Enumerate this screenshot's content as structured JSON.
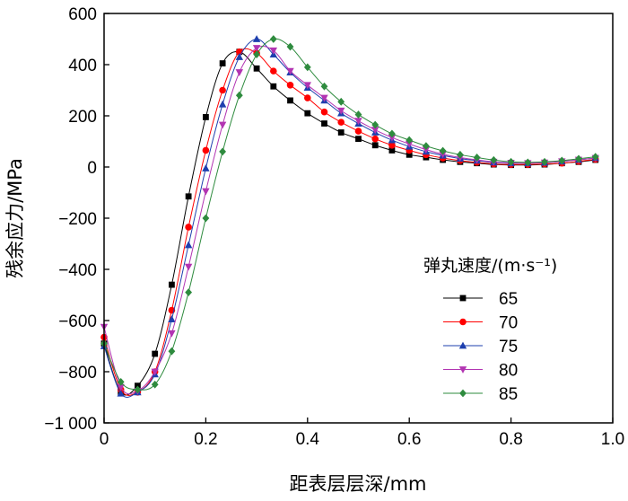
{
  "chart_data": {
    "type": "line",
    "title": "",
    "xlabel": "距表层层深/mm",
    "ylabel": "残余应力/MPa",
    "xlim": [
      0,
      1.0
    ],
    "ylim": [
      -1000,
      600
    ],
    "xticks": [
      "0",
      "0.2",
      "0.4",
      "0.6",
      "0.8",
      "1.0"
    ],
    "yticks": [
      "600",
      "400",
      "200",
      "0",
      "−200",
      "−400",
      "−600",
      "−800",
      "−1 000"
    ],
    "legend_title": "弹丸速度/(m·s⁻¹)",
    "legend_position": "right-middle",
    "grid": false,
    "series": [
      {
        "name": "65",
        "marker": "square",
        "color": "#000000",
        "x": [
          0,
          0.033,
          0.066,
          0.1,
          0.133,
          0.166,
          0.2,
          0.233,
          0.266,
          0.3,
          0.333,
          0.366,
          0.4,
          0.433,
          0.466,
          0.5,
          0.533,
          0.566,
          0.6,
          0.633,
          0.666,
          0.7,
          0.733,
          0.766,
          0.8,
          0.833,
          0.866,
          0.9,
          0.933,
          0.966
        ],
        "y": [
          -690,
          -880,
          -855,
          -730,
          -460,
          -115,
          195,
          405,
          450,
          385,
          315,
          260,
          210,
          170,
          135,
          110,
          85,
          65,
          48,
          38,
          28,
          20,
          15,
          10,
          8,
          8,
          10,
          15,
          20,
          28
        ]
      },
      {
        "name": "70",
        "marker": "circle",
        "color": "#ff0000",
        "x": [
          0,
          0.033,
          0.066,
          0.1,
          0.133,
          0.166,
          0.2,
          0.233,
          0.266,
          0.3,
          0.333,
          0.366,
          0.4,
          0.433,
          0.466,
          0.5,
          0.533,
          0.566,
          0.6,
          0.633,
          0.666,
          0.7,
          0.733,
          0.766,
          0.8,
          0.833,
          0.866,
          0.9,
          0.933,
          0.966
        ],
        "y": [
          -665,
          -870,
          -880,
          -800,
          -560,
          -235,
          65,
          300,
          450,
          445,
          375,
          320,
          270,
          215,
          175,
          140,
          110,
          85,
          65,
          48,
          35,
          25,
          18,
          12,
          10,
          10,
          12,
          15,
          22,
          30
        ]
      },
      {
        "name": "75",
        "marker": "triangle-up",
        "color": "#1e3fae",
        "x": [
          0,
          0.033,
          0.066,
          0.1,
          0.133,
          0.166,
          0.2,
          0.233,
          0.266,
          0.3,
          0.333,
          0.366,
          0.4,
          0.433,
          0.466,
          0.5,
          0.533,
          0.566,
          0.6,
          0.633,
          0.666,
          0.7,
          0.733,
          0.766,
          0.8,
          0.833,
          0.866,
          0.9,
          0.933,
          0.966
        ],
        "y": [
          -700,
          -885,
          -880,
          -810,
          -595,
          -305,
          -5,
          245,
          430,
          500,
          440,
          370,
          310,
          260,
          210,
          170,
          135,
          105,
          80,
          60,
          45,
          33,
          25,
          18,
          15,
          15,
          17,
          22,
          28,
          35
        ]
      },
      {
        "name": "80",
        "marker": "triangle-down",
        "color": "#b234b2",
        "x": [
          0,
          0.033,
          0.066,
          0.1,
          0.133,
          0.166,
          0.2,
          0.233,
          0.266,
          0.3,
          0.333,
          0.366,
          0.4,
          0.433,
          0.466,
          0.5,
          0.533,
          0.566,
          0.6,
          0.633,
          0.666,
          0.7,
          0.733,
          0.766,
          0.8,
          0.833,
          0.866,
          0.9,
          0.933,
          0.966
        ],
        "y": [
          -625,
          -860,
          -875,
          -800,
          -650,
          -390,
          -95,
          165,
          370,
          465,
          455,
          375,
          320,
          270,
          220,
          180,
          145,
          115,
          90,
          68,
          50,
          37,
          28,
          20,
          16,
          15,
          17,
          22,
          28,
          35
        ]
      },
      {
        "name": "85",
        "marker": "diamond",
        "color": "#2e8b3e",
        "x": [
          0,
          0.033,
          0.066,
          0.1,
          0.133,
          0.166,
          0.2,
          0.233,
          0.266,
          0.3,
          0.333,
          0.366,
          0.4,
          0.433,
          0.466,
          0.5,
          0.533,
          0.566,
          0.6,
          0.633,
          0.666,
          0.7,
          0.733,
          0.766,
          0.8,
          0.833,
          0.866,
          0.9,
          0.933,
          0.966
        ],
        "y": [
          -690,
          -840,
          -870,
          -850,
          -720,
          -490,
          -200,
          60,
          280,
          440,
          500,
          470,
          390,
          315,
          255,
          205,
          165,
          130,
          105,
          82,
          63,
          48,
          37,
          27,
          20,
          18,
          20,
          25,
          32,
          40
        ]
      }
    ]
  }
}
